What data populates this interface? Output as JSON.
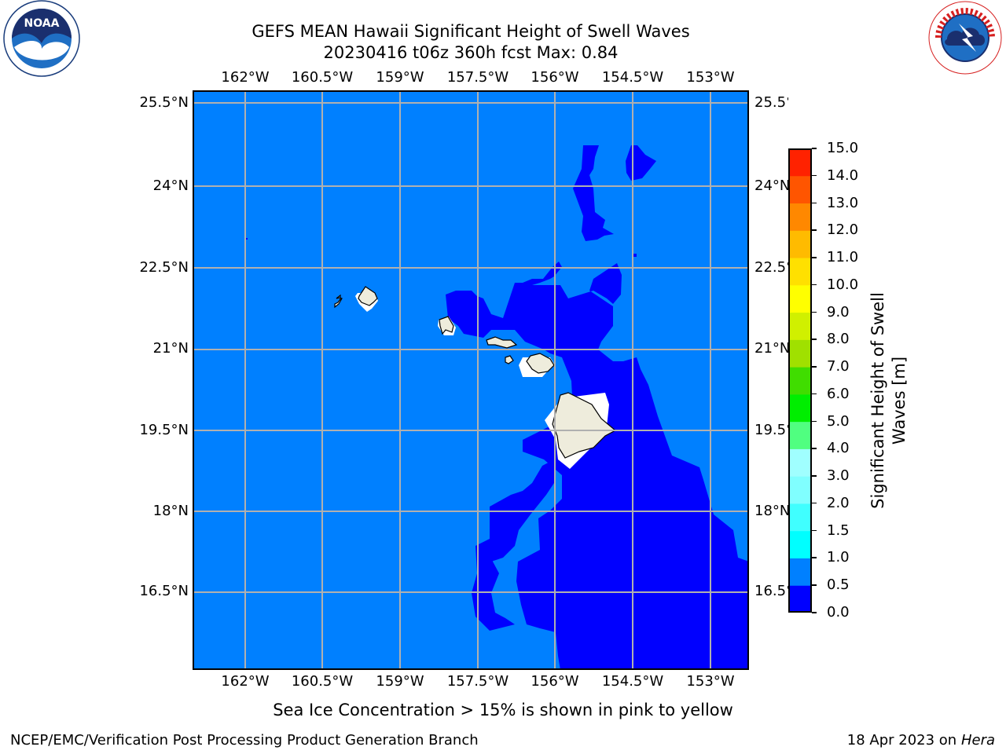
{
  "header": {
    "title_line1": "GEFS MEAN Hawaii Significant Height of Swell Waves",
    "title_line2": "20230416 t06z 360h fcst   Max: 0.84"
  },
  "logos": {
    "noaa": {
      "text": "NOAA",
      "ring_text": "NATIONAL OCEANIC AND ATMOSPHERIC ADMINISTRATION · U.S. DEPARTMENT OF COMMERCE"
    },
    "nws": {
      "ring_text": "NATIONAL WEATHER SERVICE"
    }
  },
  "map": {
    "lon_ticks": [
      "162°W",
      "160.5°W",
      "159°W",
      "157.5°W",
      "156°W",
      "154.5°W",
      "153°W"
    ],
    "lat_ticks": [
      "25.5°N",
      "24°N",
      "22.5°N",
      "21°N",
      "19.5°N",
      "18°N",
      "16.5°N"
    ],
    "lon_range": [
      "163°W",
      "152.3°W"
    ],
    "lat_range": [
      "14.4°N",
      "25.7°N"
    ],
    "grid": true,
    "colors": {
      "level_0_0_5": "#0000ff",
      "level_0_5_1": "#0080ff",
      "land": "#eeecdc",
      "grid": "#b0b0b0"
    }
  },
  "colorbar": {
    "label": "Significant Height of Swell Waves [m]",
    "label_line1": "Significant Height of Swell",
    "label_line2": "Waves [m]",
    "ticks": [
      "0.0",
      "0.5",
      "1.0",
      "1.5",
      "2.0",
      "3.0",
      "4.0",
      "5.0",
      "6.0",
      "7.0",
      "8.0",
      "9.0",
      "10.0",
      "11.0",
      "12.0",
      "13.0",
      "14.0",
      "15.0"
    ],
    "colors": [
      "#0000ff",
      "#0080ff",
      "#00ffff",
      "#40ffff",
      "#80ffff",
      "#a0ffff",
      "#50ff80",
      "#00ee00",
      "#40dd00",
      "#a0e000",
      "#d0f000",
      "#ffff00",
      "#ffe000",
      "#ffbb00",
      "#ff8800",
      "#ff5500",
      "#ff2200",
      "#ff0000"
    ]
  },
  "notes": {
    "sea_ice": "Sea Ice Concentration > 15% is shown in pink to yellow"
  },
  "footer": {
    "left": "NCEP/EMC/Verification Post Processing Product Generation Branch",
    "date": "18 Apr 2023 on ",
    "host": "Hera"
  }
}
